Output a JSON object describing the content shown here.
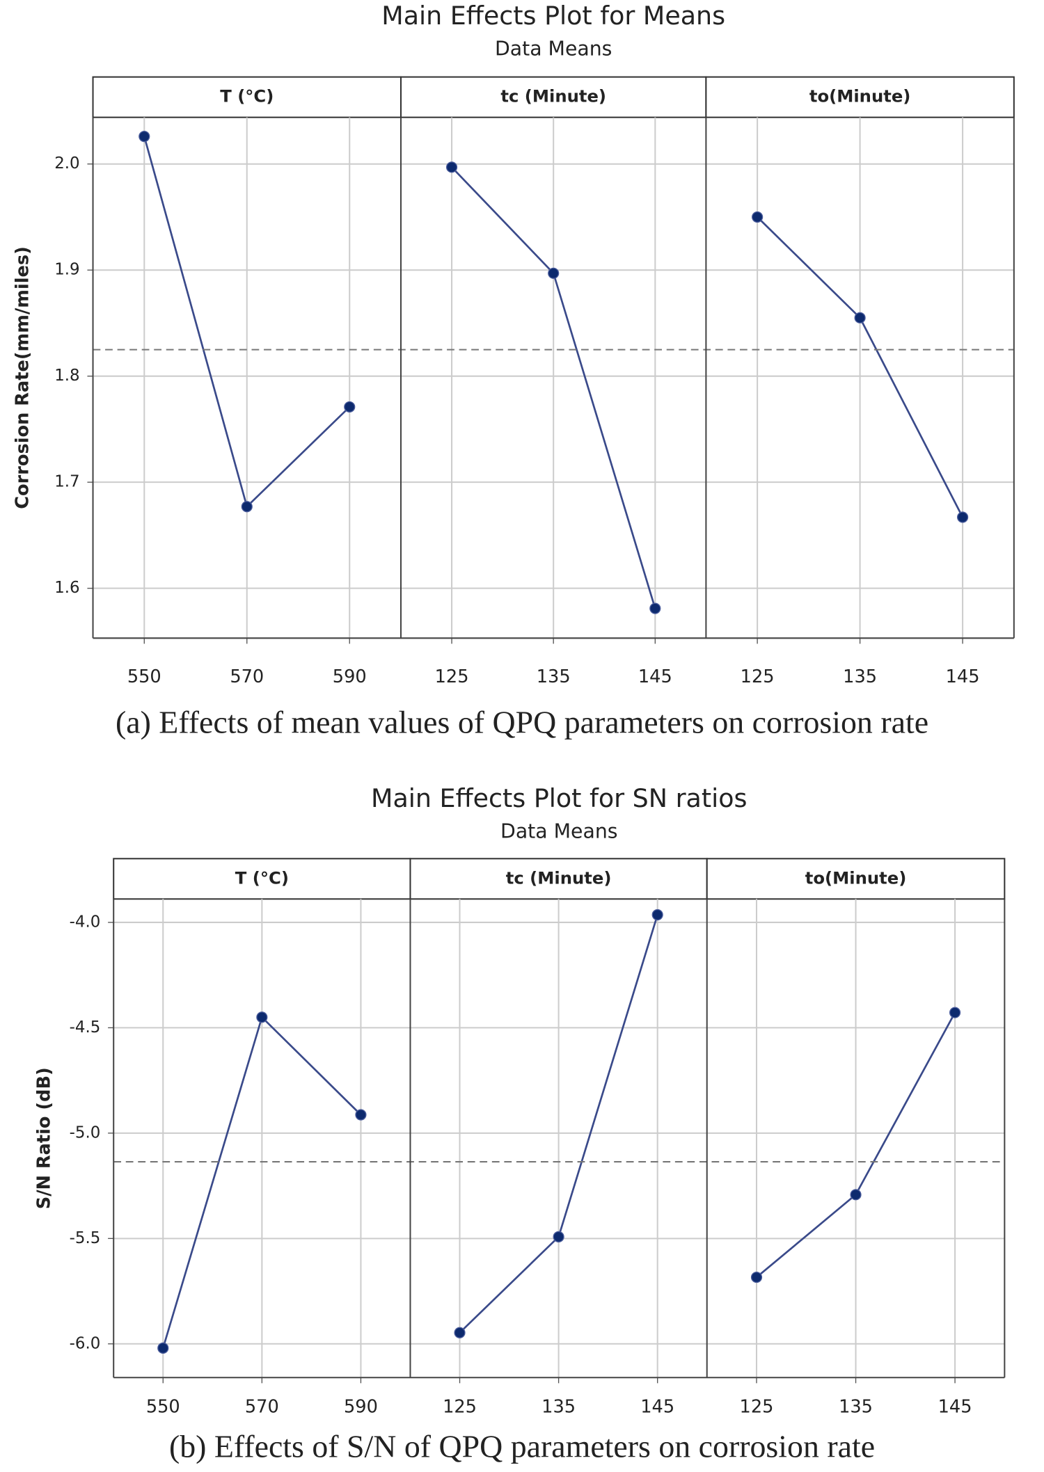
{
  "chart_data": [
    {
      "type": "line",
      "title": "Main Effects Plot for Means",
      "subtitle": "Data Means",
      "ylabel": "Corrosion Rate(mm/miles)",
      "caption": "(a) Effects of mean values of QPQ parameters on corrosion rate",
      "ylim": [
        1.553,
        2.044
      ],
      "yticks": [
        {
          "value": 1.6,
          "label": "1.6"
        },
        {
          "value": 1.7,
          "label": "1.7"
        },
        {
          "value": 1.8,
          "label": "1.8"
        },
        {
          "value": 1.9,
          "label": "1.9"
        },
        {
          "value": 2.0,
          "label": "2.0"
        }
      ],
      "reference_value": 1.825,
      "color": "#3a4a8a",
      "marker_color": "#0d2a6e",
      "grid": true,
      "panels": [
        {
          "title": "T (°C)",
          "categories": [
            "550",
            "570",
            "590"
          ],
          "values": [
            2.026,
            1.677,
            1.771
          ]
        },
        {
          "title": "tc (Minute)",
          "categories": [
            "125",
            "135",
            "145"
          ],
          "values": [
            1.997,
            1.897,
            1.581
          ]
        },
        {
          "title": "to(Minute)",
          "categories": [
            "125",
            "135",
            "145"
          ],
          "values": [
            1.95,
            1.855,
            1.667
          ]
        }
      ]
    },
    {
      "type": "line",
      "title": "Main Effects Plot for SN ratios",
      "subtitle": "Data Means",
      "ylabel": "S/N Ratio (dB)",
      "caption": "(b) Effects of S/N of QPQ parameters on corrosion rate",
      "ylim": [
        -6.16,
        -3.889
      ],
      "yticks": [
        {
          "value": -6,
          "label": "-6.0"
        },
        -5.5,
        {
          "value": -5,
          "label": "-5.0"
        },
        -4.5,
        {
          "value": -4,
          "label": "-4.0"
        }
      ],
      "reference_value": -5.136,
      "color": "#3a4a8a",
      "marker_color": "#0d2a6e",
      "grid": true,
      "panels": [
        {
          "title": "T (°C)",
          "categories": [
            "550",
            "570",
            "590"
          ],
          "values": [
            -6.02,
            -4.45,
            -4.913
          ]
        },
        {
          "title": "tc (Minute)",
          "categories": [
            "125",
            "135",
            "145"
          ],
          "values": [
            -5.947,
            -5.492,
            -3.964
          ]
        },
        {
          "title": "to(Minute)",
          "categories": [
            "125",
            "135",
            "145"
          ],
          "values": [
            -5.684,
            -5.292,
            -4.428
          ]
        }
      ]
    }
  ]
}
